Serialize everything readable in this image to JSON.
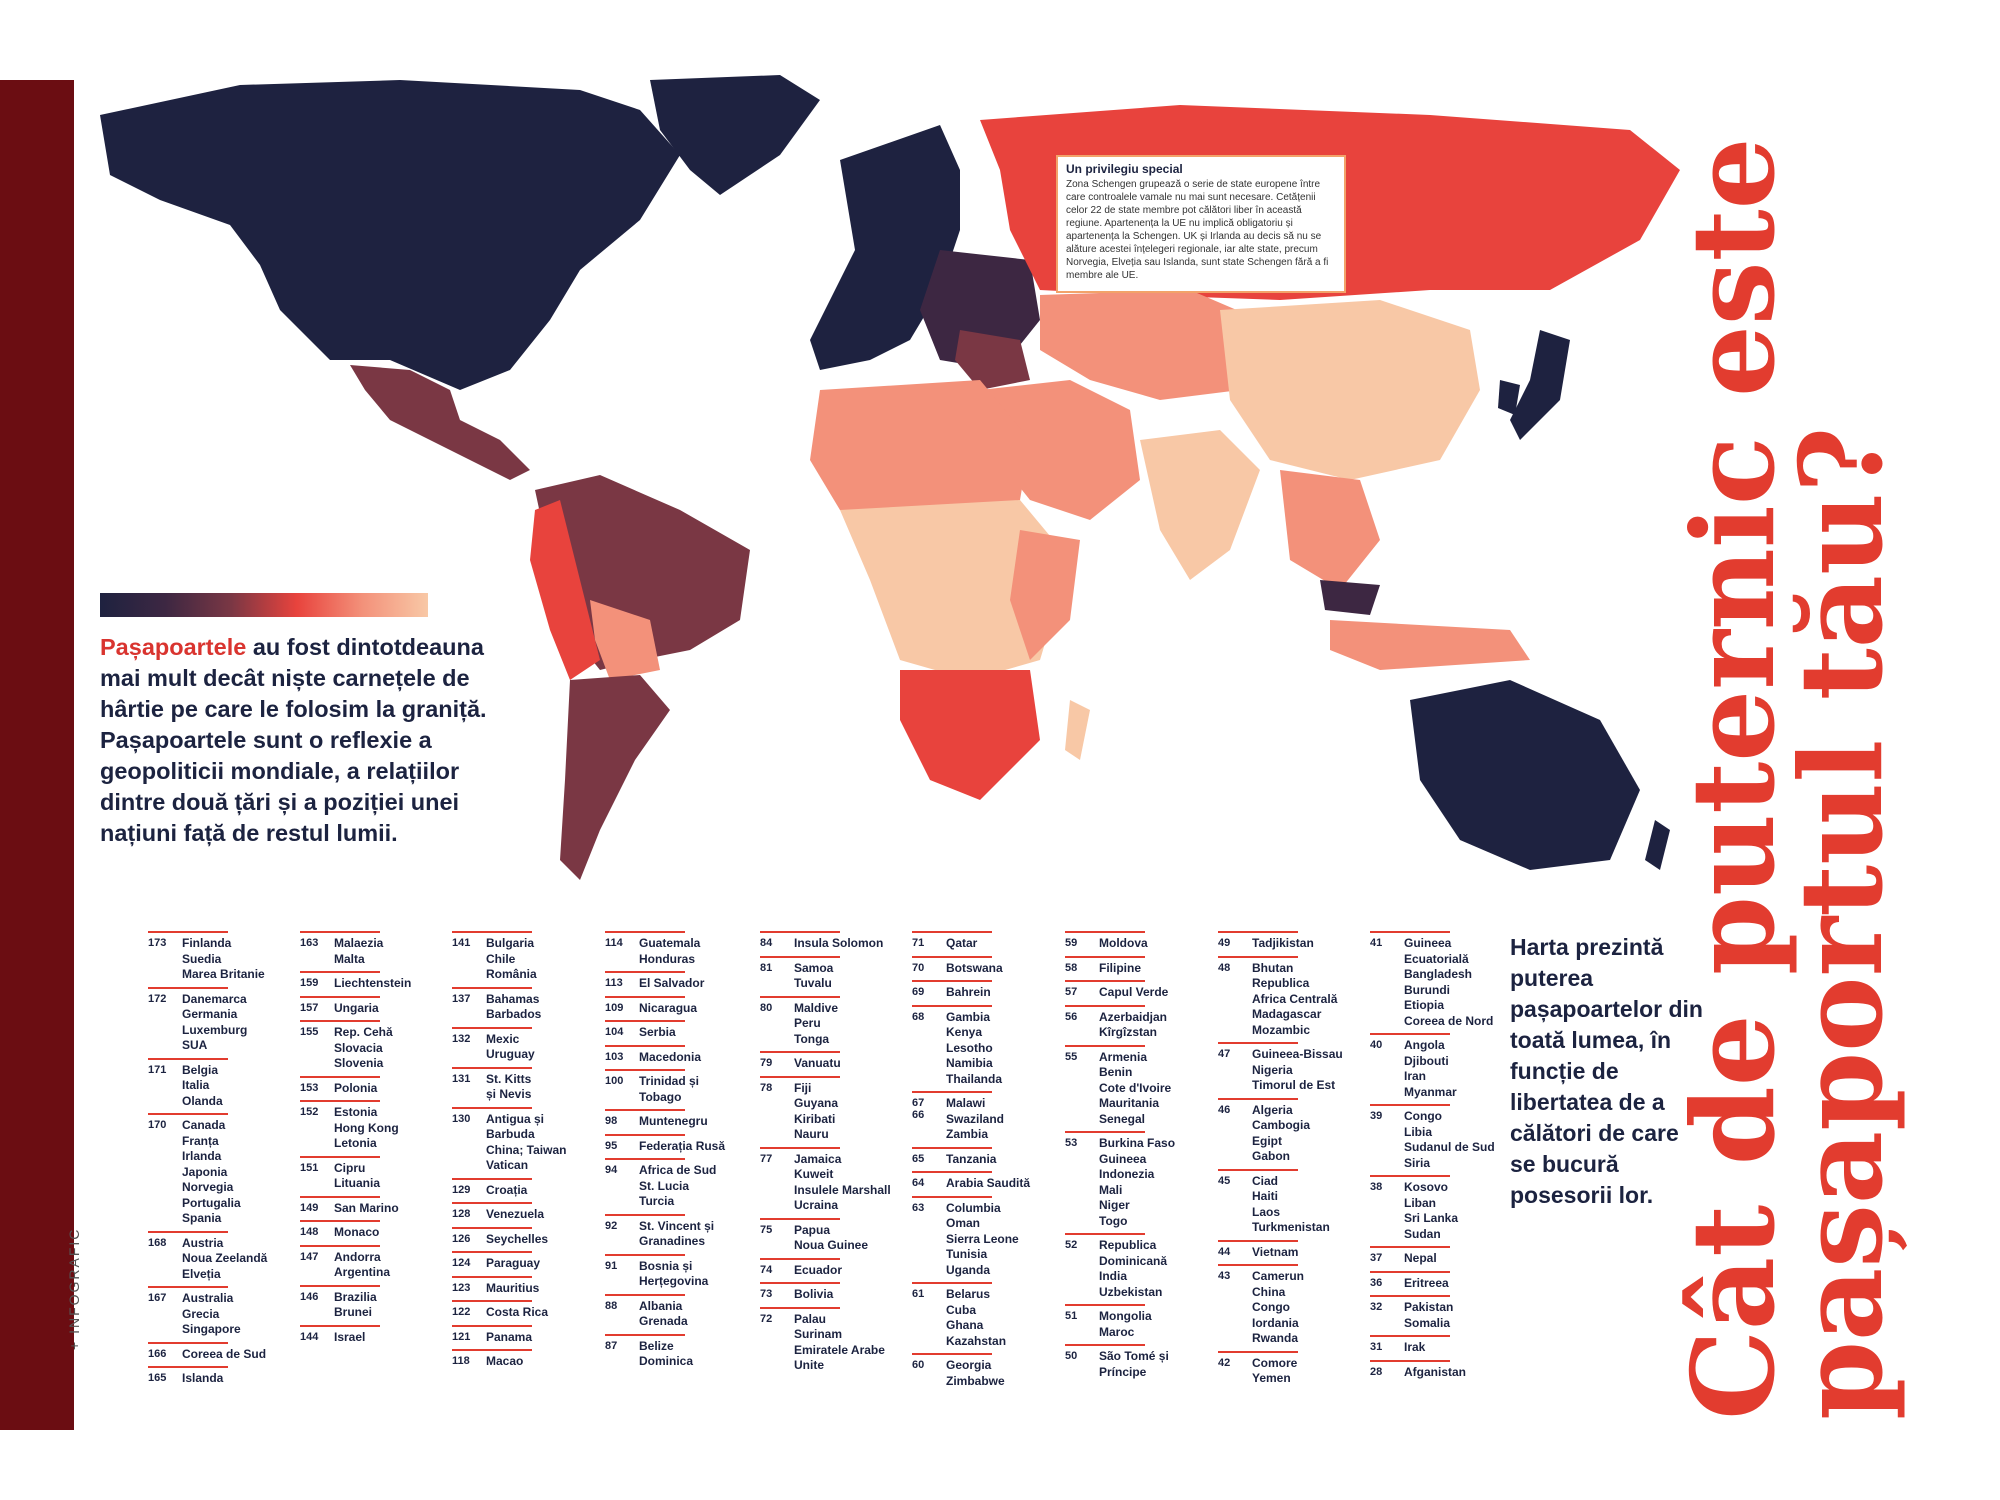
{
  "section_label": "+ INFOGRAFIC",
  "title_lines": [
    "Cât de puternic este",
    "pașaportul tău?"
  ],
  "intro": {
    "highlight": "Pașapoartele",
    "text": " au fost dintotdeauna mai mult decât niște carnețele de hârtie pe care le folosim la graniță. Pașapoartele sunt o reflexie a geopoliticii mondiale, a relațiilor dintre două țări și a poziției unei națiuni față de restul lumii."
  },
  "callout": {
    "title": "Un privilegiu special",
    "text": "Zona Schengen grupează o serie de state europene între care controalele vamale nu mai sunt necesare. Cetățenii celor 22 de state membre pot călători liber în această regiune. Apartenența la UE nu implică obligatoriu și apartenența la Schengen. UK și Irlanda au decis să nu se alăture acestei înțelegeri regionale, iar alte state, precum Norvegia, Elveția sau Islanda, sunt state Schengen fără a fi membre ale UE."
  },
  "note": "Harta prezintă puterea pașapoartelor din toată lumea, în funcție de libertatea de a călători de care se bucură posesorii lor.",
  "colors": {
    "accent": "#e23c2f",
    "navy": "#1e2240",
    "sidebar": "#6b0d12",
    "scale": [
      "#1e2240",
      "#3d2742",
      "#7a3744",
      "#e8433d",
      "#f3917a",
      "#f8c8a6"
    ]
  },
  "ranking_columns": [
    [
      {
        "score": "173",
        "countries": "Finlanda\nSuedia\nMarea Britanie"
      },
      {
        "score": "172",
        "countries": "Danemarca\nGermania\nLuxemburg\nSUA"
      },
      {
        "score": "171",
        "countries": "Belgia\nItalia\nOlanda"
      },
      {
        "score": "170",
        "countries": "Canada\nFranța\nIrlanda\nJaponia\nNorvegia\nPortugalia\nSpania"
      },
      {
        "score": "168",
        "countries": "Austria\nNoua Zeelandă\nElveția"
      },
      {
        "score": "167",
        "countries": "Australia\nGrecia\nSingapore"
      },
      {
        "score": "166",
        "countries": "Coreea de Sud"
      },
      {
        "score": "165",
        "countries": "Islanda"
      }
    ],
    [
      {
        "score": "163",
        "countries": "Malaezia\nMalta"
      },
      {
        "score": "159",
        "countries": "Liechtenstein"
      },
      {
        "score": "157",
        "countries": "Ungaria"
      },
      {
        "score": "155",
        "countries": "Rep. Cehă\nSlovacia\nSlovenia"
      },
      {
        "score": "153",
        "countries": "Polonia"
      },
      {
        "score": "152",
        "countries": "Estonia\nHong Kong\nLetonia"
      },
      {
        "score": "151",
        "countries": "Cipru\nLituania"
      },
      {
        "score": "149",
        "countries": "San Marino"
      },
      {
        "score": "148",
        "countries": "Monaco"
      },
      {
        "score": "147",
        "countries": "Andorra\nArgentina"
      },
      {
        "score": "146",
        "countries": "Brazilia\nBrunei"
      },
      {
        "score": "144",
        "countries": "Israel"
      }
    ],
    [
      {
        "score": "141",
        "countries": "Bulgaria\nChile\nRomânia"
      },
      {
        "score": "137",
        "countries": "Bahamas\nBarbados"
      },
      {
        "score": "132",
        "countries": "Mexic\nUruguay"
      },
      {
        "score": "131",
        "countries": "St. Kitts\nși Nevis"
      },
      {
        "score": "130",
        "countries": "Antigua și\nBarbuda\nChina; Taiwan\nVatican"
      },
      {
        "score": "129",
        "countries": "Croația"
      },
      {
        "score": "128",
        "countries": "Venezuela"
      },
      {
        "score": "126",
        "countries": "Seychelles"
      },
      {
        "score": "124",
        "countries": "Paraguay"
      },
      {
        "score": "123",
        "countries": "Mauritius"
      },
      {
        "score": "122",
        "countries": "Costa Rica"
      },
      {
        "score": "121",
        "countries": "Panama"
      },
      {
        "score": "118",
        "countries": "Macao"
      }
    ],
    [
      {
        "score": "114",
        "countries": "Guatemala\nHonduras"
      },
      {
        "score": "113",
        "countries": "El Salvador"
      },
      {
        "score": "109",
        "countries": "Nicaragua"
      },
      {
        "score": "104",
        "countries": "Serbia"
      },
      {
        "score": "103",
        "countries": "Macedonia"
      },
      {
        "score": "100",
        "countries": "Trinidad și\nTobago"
      },
      {
        "score": "98",
        "countries": "Muntenegru"
      },
      {
        "score": "95",
        "countries": "Federația Rusă"
      },
      {
        "score": "94",
        "countries": "Africa de Sud\nSt. Lucia\nTurcia"
      },
      {
        "score": "92",
        "countries": "St. Vincent și\nGranadines"
      },
      {
        "score": "91",
        "countries": "Bosnia și\nHerțegovina"
      },
      {
        "score": "88",
        "countries": "Albania\nGrenada"
      },
      {
        "score": "87",
        "countries": "Belize\nDominica"
      }
    ],
    [
      {
        "score": "84",
        "countries": "Insula Solomon"
      },
      {
        "score": "81",
        "countries": "Samoa\nTuvalu"
      },
      {
        "score": "80",
        "countries": "Maldive\nPeru\nTonga"
      },
      {
        "score": "79",
        "countries": "Vanuatu"
      },
      {
        "score": "78",
        "countries": "Fiji\nGuyana\nKiribati\nNauru"
      },
      {
        "score": "77",
        "countries": "Jamaica\nKuweit\nInsulele Marshall\nUcraina"
      },
      {
        "score": "75",
        "countries": "Papua\nNoua Guinee"
      },
      {
        "score": "74",
        "countries": "Ecuador"
      },
      {
        "score": "73",
        "countries": "Bolivia"
      },
      {
        "score": "72",
        "countries": "Palau\nSurinam\nEmiratele Arabe\nUnite"
      }
    ],
    [
      {
        "score": "71",
        "countries": "Qatar"
      },
      {
        "score": "70",
        "countries": "Botswana"
      },
      {
        "score": "69",
        "countries": "Bahrein"
      },
      {
        "score": "68",
        "countries": "Gambia\nKenya\nLesotho\nNamibia\nThailanda"
      },
      {
        "score": "67\n66",
        "countries": "Malawi\nSwaziland\nZambia"
      },
      {
        "score": "65",
        "countries": "Tanzania"
      },
      {
        "score": "64",
        "countries": "Arabia Saudită"
      },
      {
        "score": "63",
        "countries": "Columbia\nOman\nSierra Leone\nTunisia\nUganda"
      },
      {
        "score": "61",
        "countries": "Belarus\nCuba\nGhana\nKazahstan"
      },
      {
        "score": "60",
        "countries": "Georgia\nZimbabwe"
      }
    ],
    [
      {
        "score": "59",
        "countries": "Moldova"
      },
      {
        "score": "58",
        "countries": "Filipine"
      },
      {
        "score": "57",
        "countries": "Capul Verde"
      },
      {
        "score": "56",
        "countries": "Azerbaidjan\nKîrgîzstan"
      },
      {
        "score": "55",
        "countries": "Armenia\nBenin\nCote d'Ivoire\nMauritania\nSenegal"
      },
      {
        "score": "53",
        "countries": "Burkina Faso\nGuineea\nIndonezia\nMali\nNiger\nTogo"
      },
      {
        "score": "52",
        "countries": "Republica\nDominicană\nIndia\nUzbekistan"
      },
      {
        "score": "51",
        "countries": "Mongolia\nMaroc"
      },
      {
        "score": "50",
        "countries": "São Tomé și\nPríncipe"
      }
    ],
    [
      {
        "score": "49",
        "countries": "Tadjikistan"
      },
      {
        "score": "48",
        "countries": "Bhutan\nRepublica\nAfrica Centrală\nMadagascar\nMozambic"
      },
      {
        "score": "47",
        "countries": "Guineea-Bissau\nNigeria\nTimorul de Est"
      },
      {
        "score": "46",
        "countries": "Algeria\nCambogia\nEgipt\nGabon"
      },
      {
        "score": "45",
        "countries": "Ciad\nHaiti\nLaos\nTurkmenistan"
      },
      {
        "score": "44",
        "countries": "Vietnam"
      },
      {
        "score": "43",
        "countries": "Camerun\nChina\nCongo\nIordania\nRwanda"
      },
      {
        "score": "42",
        "countries": "Comore\nYemen"
      }
    ],
    [
      {
        "score": "41",
        "countries": "Guineea\nEcuatorială\nBangladesh\nBurundi\nEtiopia\nCoreea de Nord"
      },
      {
        "score": "40",
        "countries": "Angola\nDjibouti\nIran\nMyanmar"
      },
      {
        "score": "39",
        "countries": "Congo\nLibia\nSudanul de Sud\nSiria"
      },
      {
        "score": "38",
        "countries": "Kosovo\nLiban\nSri Lanka\nSudan"
      },
      {
        "score": "37",
        "countries": "Nepal"
      },
      {
        "score": "36",
        "countries": "Eritreea"
      },
      {
        "score": "32",
        "countries": "Pakistan\nSomalia"
      },
      {
        "score": "31",
        "countries": "Irak"
      },
      {
        "score": "28",
        "countries": "Afganistan"
      }
    ]
  ]
}
